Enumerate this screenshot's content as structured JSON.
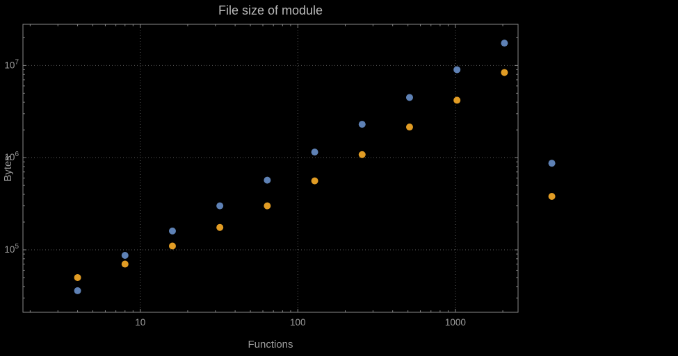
{
  "chart_data": {
    "type": "scatter",
    "title": "File size of module",
    "xlabel": "Functions",
    "ylabel": "Bytes",
    "x_scale": "log",
    "y_scale": "log",
    "xlim": [
      1.8,
      2500
    ],
    "ylim": [
      21000,
      28000000
    ],
    "x_ticks": [
      10,
      100,
      1000
    ],
    "y_ticks": [
      100000,
      1000000,
      10000000
    ],
    "grid": "dotted-major",
    "legend": "none",
    "series": [
      {
        "color": "#5e81b5",
        "points": [
          [
            4,
            36000
          ],
          [
            8,
            87000
          ],
          [
            16,
            160000
          ],
          [
            32,
            300000
          ],
          [
            64,
            570000
          ],
          [
            128,
            1150000
          ],
          [
            256,
            2300000
          ],
          [
            512,
            4500000
          ],
          [
            1024,
            9000000
          ],
          [
            2048,
            17500000
          ],
          [
            4096,
            870000
          ]
        ]
      },
      {
        "color": "#e19c24",
        "points": [
          [
            4,
            50000
          ],
          [
            8,
            70000
          ],
          [
            16,
            110000
          ],
          [
            32,
            175000
          ],
          [
            64,
            300000
          ],
          [
            128,
            560000
          ],
          [
            256,
            1080000
          ],
          [
            512,
            2150000
          ],
          [
            1024,
            4200000
          ],
          [
            2048,
            8400000
          ],
          [
            4096,
            380000
          ]
        ]
      }
    ],
    "style": {
      "background": "#000000",
      "frame_color": "#8a8a8a",
      "grid_color": "#5e5e5e",
      "tick_label_color": "#9d9d9d",
      "title_color": "#b9b9b9",
      "axis_label_color": "#9d9d9d"
    }
  }
}
